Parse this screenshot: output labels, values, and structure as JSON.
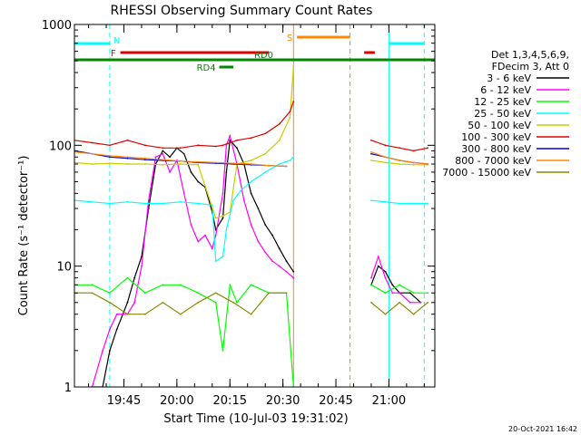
{
  "chart_data": {
    "type": "line",
    "title": "RHESSI Observing Summary Count Rates",
    "xlabel": "Start Time (10-Jul-03 19:31:02)",
    "ylabel": "Count Rate (s⁻¹ detector⁻¹)",
    "y_scale": "log",
    "ylim": [
      1,
      1000
    ],
    "y_ticks": [
      {
        "value": 1,
        "label": "1"
      },
      {
        "value": 10,
        "label": "10"
      },
      {
        "value": 100,
        "label": "100"
      },
      {
        "value": 1000,
        "label": "1000"
      }
    ],
    "xlim_minutes": [
      0,
      102
    ],
    "x_ticks": [
      {
        "minute": 14,
        "label": "19:45"
      },
      {
        "minute": 29,
        "label": "20:00"
      },
      {
        "minute": 44,
        "label": "20:15"
      },
      {
        "minute": 59,
        "label": "20:30"
      },
      {
        "minute": 74,
        "label": "20:45"
      },
      {
        "minute": 89,
        "label": "21:00"
      }
    ],
    "legend": {
      "placement": "right",
      "header": [
        "Det 1,3,4,5,6,9,",
        "FDecim 3, Att 0"
      ],
      "entries": [
        {
          "label": "3 - 6 keV",
          "color": "#000000"
        },
        {
          "label": "6 - 12 keV",
          "color": "#ff00ff"
        },
        {
          "label": "12 - 25 keV",
          "color": "#00ff00"
        },
        {
          "label": "25 - 50 keV",
          "color": "#00ffff"
        },
        {
          "label": "50 - 100 keV",
          "color": "#cccc00"
        },
        {
          "label": "100 - 300 keV",
          "color": "#dd0000"
        },
        {
          "label": "300 - 800 keV",
          "color": "#0000dd"
        },
        {
          "label": "800 - 7000 keV",
          "color": "#ff8800"
        },
        {
          "label": "7000 - 15000 keV",
          "color": "#888800"
        }
      ]
    },
    "gap_minutes": [
      62,
      84
    ],
    "series": [
      {
        "name": "3 - 6 keV",
        "color": "#000000",
        "x": [
          5,
          8,
          10,
          12,
          15,
          17,
          19,
          21,
          23,
          25,
          27,
          29,
          31,
          33,
          35,
          37,
          39,
          40,
          42,
          43,
          44,
          46,
          48,
          50,
          52,
          54,
          56,
          58,
          60,
          62,
          84,
          86,
          88,
          90,
          92,
          95,
          98
        ],
        "y": [
          1,
          1,
          2,
          3,
          5,
          8,
          12,
          30,
          70,
          90,
          80,
          95,
          85,
          60,
          50,
          45,
          28,
          20,
          25,
          60,
          110,
          95,
          70,
          40,
          30,
          22,
          18,
          14,
          11,
          9,
          7,
          10,
          9,
          7,
          6,
          6,
          5
        ]
      },
      {
        "name": "6 - 12 keV",
        "color": "#ff00ff",
        "x": [
          5,
          8,
          10,
          12,
          15,
          17,
          19,
          21,
          23,
          25,
          27,
          29,
          31,
          33,
          35,
          37,
          39,
          40,
          42,
          43,
          44,
          46,
          48,
          50,
          52,
          54,
          56,
          58,
          60,
          62,
          84,
          86,
          88,
          90,
          92,
          95,
          98
        ],
        "y": [
          1,
          2,
          3,
          4,
          4,
          5,
          10,
          35,
          80,
          85,
          60,
          75,
          40,
          22,
          16,
          18,
          14,
          18,
          40,
          100,
          120,
          70,
          35,
          22,
          16,
          13,
          11,
          10,
          9,
          8,
          8,
          12,
          8,
          6,
          6,
          5,
          5
        ]
      },
      {
        "name": "12 - 25 keV",
        "color": "#00ff00",
        "x": [
          0,
          5,
          10,
          15,
          20,
          25,
          30,
          35,
          40,
          42,
          44,
          46,
          50,
          55,
          60,
          62,
          84,
          88,
          92,
          96,
          100
        ],
        "y": [
          7,
          7,
          6,
          8,
          6,
          7,
          7,
          6,
          5,
          2,
          7,
          5,
          7,
          6,
          6,
          1,
          7,
          6,
          7,
          6,
          6
        ]
      },
      {
        "name": "25 - 50 keV",
        "color": "#00ffff",
        "x": [
          0,
          5,
          10,
          15,
          20,
          25,
          30,
          35,
          39,
          40,
          42,
          43,
          45,
          47,
          50,
          54,
          58,
          61,
          62,
          84,
          88,
          92,
          96,
          100
        ],
        "y": [
          35,
          34,
          33,
          34,
          33,
          33,
          34,
          33,
          32,
          11,
          12,
          20,
          35,
          42,
          50,
          60,
          70,
          75,
          80,
          35,
          34,
          33,
          33,
          33
        ]
      },
      {
        "name": "50 - 100 keV",
        "color": "#cccc00",
        "x": [
          0,
          5,
          10,
          15,
          20,
          25,
          30,
          35,
          40,
          42,
          44,
          46,
          50,
          54,
          58,
          61,
          62,
          84,
          88,
          92,
          96,
          100
        ],
        "y": [
          72,
          70,
          71,
          70,
          70,
          69,
          70,
          69,
          25,
          26,
          28,
          70,
          75,
          85,
          110,
          170,
          450,
          75,
          72,
          70,
          69,
          69
        ]
      },
      {
        "name": "100 - 300 keV",
        "color": "#dd0000",
        "x": [
          0,
          5,
          10,
          15,
          20,
          25,
          30,
          35,
          40,
          42,
          44,
          46,
          50,
          54,
          58,
          61,
          62,
          84,
          88,
          92,
          96,
          100
        ],
        "y": [
          110,
          105,
          100,
          110,
          100,
          95,
          95,
          100,
          98,
          100,
          105,
          110,
          115,
          125,
          150,
          190,
          230,
          110,
          100,
          95,
          90,
          95
        ]
      },
      {
        "name": "300 - 800 keV",
        "color": "#0000dd",
        "x": [
          0,
          5,
          10,
          15,
          20,
          25,
          30,
          35,
          40,
          45,
          50,
          55,
          60,
          84,
          88,
          92,
          96,
          100
        ],
        "y": [
          90,
          85,
          80,
          78,
          76,
          75,
          74,
          72,
          71,
          70,
          69,
          68,
          67,
          85,
          80,
          75,
          72,
          70
        ]
      },
      {
        "name": "800 - 7000 keV",
        "color": "#ff8800",
        "x": [
          0,
          5,
          10,
          15,
          20,
          25,
          30,
          35,
          40,
          45,
          50,
          55,
          60,
          84,
          88,
          92,
          96,
          100
        ],
        "y": [
          88,
          85,
          82,
          80,
          78,
          76,
          74,
          73,
          72,
          71,
          70,
          68,
          67,
          88,
          80,
          75,
          72,
          70
        ]
      },
      {
        "name": "7000 - 15000 keV",
        "color": "#888800",
        "x": [
          0,
          5,
          10,
          15,
          20,
          25,
          30,
          35,
          40,
          45,
          50,
          55,
          60,
          84,
          88,
          92,
          96,
          100
        ],
        "y": [
          6,
          6,
          5,
          4,
          4,
          5,
          4,
          5,
          6,
          5,
          4,
          6,
          6,
          5,
          4,
          5,
          4,
          5
        ]
      }
    ],
    "bands": [
      {
        "label": "N",
        "color": "#00ffff",
        "x0": 0,
        "x1": 10,
        "dashed": false
      },
      {
        "label": "",
        "color": "#00ffff",
        "x0": 89,
        "x1": 99,
        "dashed": false
      },
      {
        "label": "F",
        "color": "#dd0000",
        "x0": 13,
        "x1": 55,
        "dashed": false
      },
      {
        "label": "",
        "color": "#dd0000",
        "x0": 82,
        "x1": 85,
        "dashed": false
      },
      {
        "label": "S",
        "color": "#ff8800",
        "x0": 63,
        "x1": 78,
        "dashed": false
      },
      {
        "label": "RD0",
        "color": "#008800",
        "x0": 0,
        "x1": 102,
        "dashed": false
      },
      {
        "label": "RD4",
        "color": "#008800",
        "x0": 41,
        "x1": 45,
        "dashed": false
      }
    ],
    "vlines": [
      {
        "minute": 10,
        "color": "#00ffff",
        "dashed": true
      },
      {
        "minute": 62,
        "color": "#ff8800",
        "dashed": false
      },
      {
        "minute": 78,
        "color": "#ff8800",
        "dashed": true
      },
      {
        "minute": 89,
        "color": "#00ffff",
        "dashed": false
      },
      {
        "minute": 99,
        "color": "#00ffff",
        "dashed": true
      }
    ],
    "footer": "20-Oct-2021 16:42"
  }
}
